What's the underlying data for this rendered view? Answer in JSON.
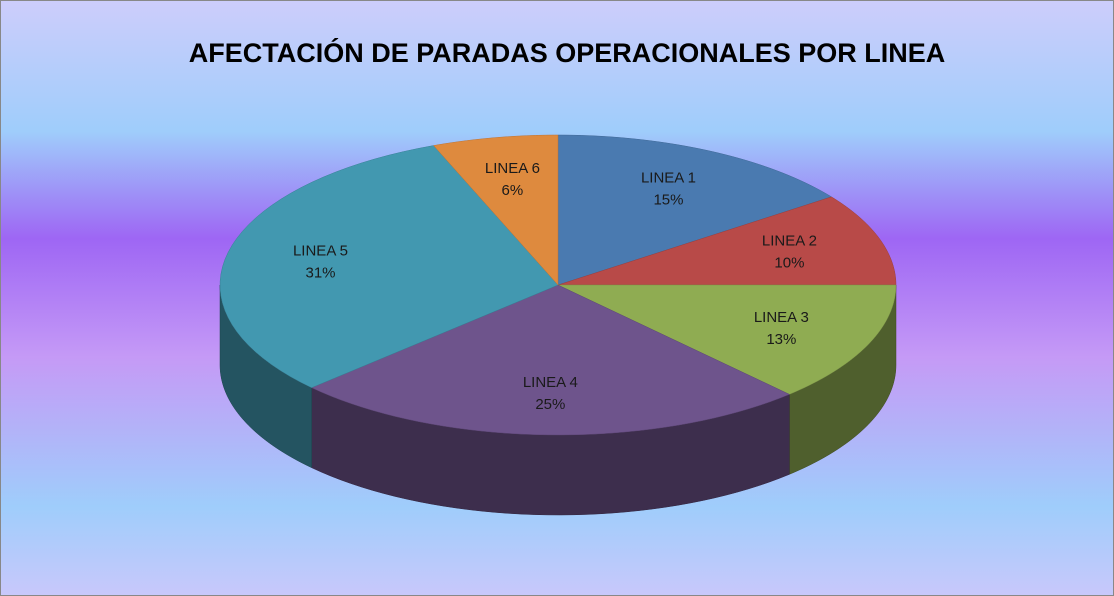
{
  "chart_data": {
    "type": "pie3d",
    "title": "AFECTACIÓN DE PARADAS OPERACIONALES POR LINEA",
    "categories": [
      "LINEA 1",
      "LINEA 2",
      "LINEA 3",
      "LINEA 4",
      "LINEA 5",
      "LINEA 6"
    ],
    "values": [
      15,
      10,
      13,
      25,
      31,
      6
    ],
    "value_labels": [
      "15%",
      "10%",
      "13%",
      "25%",
      "31%",
      "6%"
    ],
    "colors": [
      "#4a7ab0",
      "#b84a48",
      "#8fac52",
      "#6e548c",
      "#4298b0",
      "#de8a3e"
    ]
  }
}
